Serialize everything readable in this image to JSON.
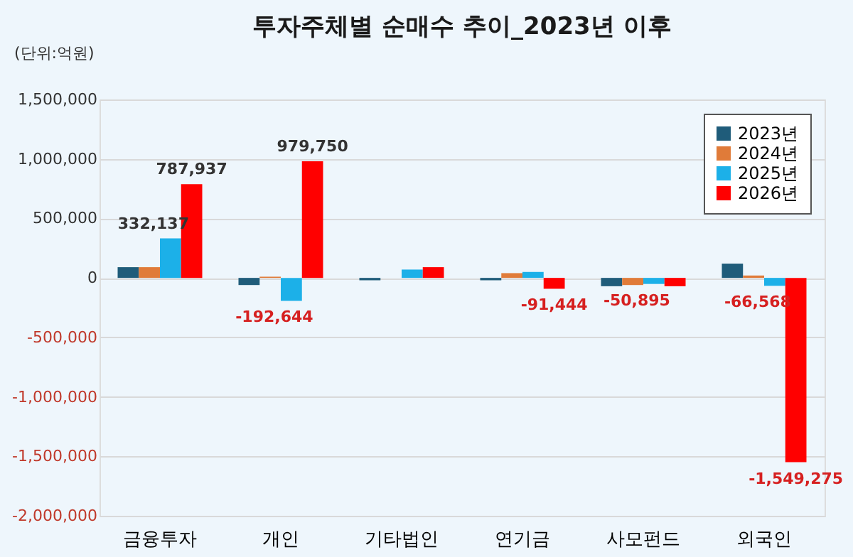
{
  "chart_data": {
    "type": "bar",
    "title": "투자주체별 순매수 추이_2023년 이후",
    "annotations": [
      "(단위:억원)"
    ],
    "categories": [
      "금융투자",
      "개인",
      "기타법인",
      "연기금",
      "사모펀드",
      "외국인"
    ],
    "series": [
      {
        "name": "2023년",
        "color": "#1f5c7a",
        "values": [
          90000,
          -60000,
          -20000,
          -20000,
          -70000,
          120000
        ]
      },
      {
        "name": "2024년",
        "color": "#e07b39",
        "values": [
          90000,
          10000,
          0,
          40000,
          -60000,
          20000
        ]
      },
      {
        "name": "2025년",
        "color": "#1cb0e8",
        "values": [
          332137,
          -192644,
          70000,
          50000,
          -50895,
          -66568
        ],
        "value_labels": [
          "332,137",
          "-192,644",
          null,
          null,
          "-50,895",
          "-66,568"
        ]
      },
      {
        "name": "2026년",
        "color": "#ff0000",
        "values": [
          787937,
          979750,
          90000,
          -91444,
          -70000,
          -1549275
        ],
        "value_labels": [
          "787,937",
          "979,750",
          null,
          "-91,444",
          null,
          "-1,549,275"
        ]
      }
    ],
    "ylim": [
      -2000000,
      1500000
    ],
    "yticks": [
      {
        "value": -2000000,
        "label": "-2,000,000"
      },
      {
        "value": -1500000,
        "label": "-1,500,000"
      },
      {
        "value": -1000000,
        "label": "-1,000,000"
      },
      {
        "value": -500000,
        "label": "-500,000"
      },
      0,
      {
        "value": 500000,
        "label": "500,000"
      },
      {
        "value": 1000000,
        "label": "1,000,000"
      },
      {
        "value": 1500000,
        "label": "1,500,000"
      }
    ],
    "grid": "y",
    "legend": "top right"
  }
}
